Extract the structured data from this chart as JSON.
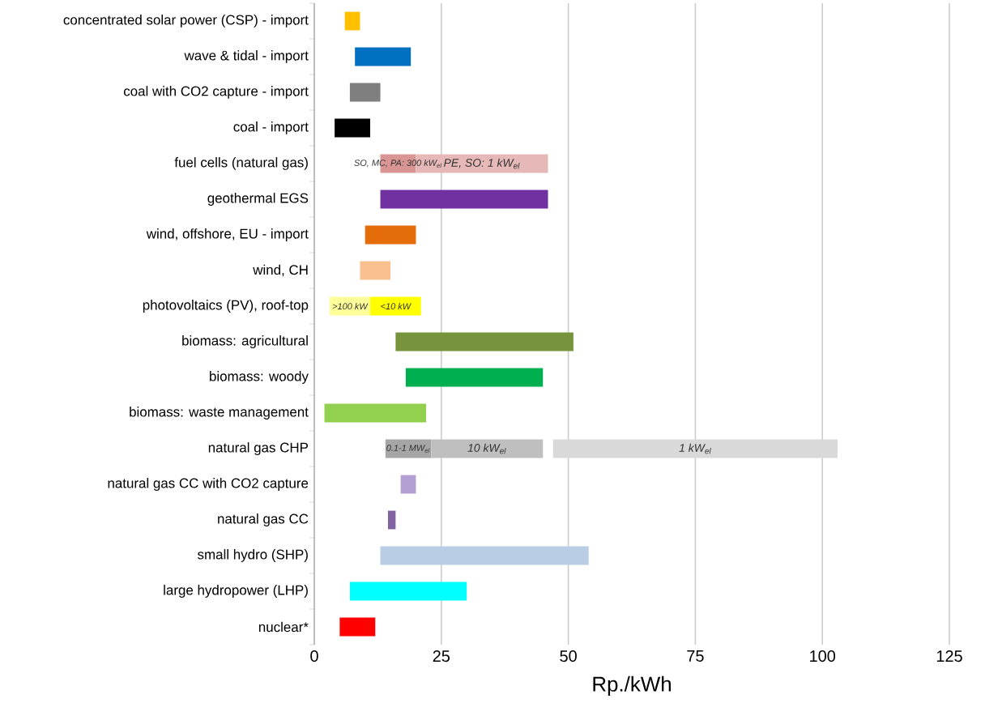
{
  "chart_data": {
    "type": "bar",
    "orientation": "horizontal",
    "xlabel": "Rp./kWh",
    "categories": [
      "concentrated solar power (CSP) - import",
      "wave & tidal - import",
      "coal with CO2 capture - import",
      "coal - import",
      "fuel cells (natural gas)",
      "geothermal EGS",
      "wind, offshore, EU - import",
      "wind, CH",
      "photovoltaics (PV), roof-top",
      "biomass: agricultural",
      "biomass: woody",
      "biomass: waste management",
      "natural gas CHP",
      "natural gas CC with CO2 capture",
      "natural gas CC",
      "small hydro (SHP)",
      "large hydropower (LHP)",
      "nuclear*"
    ],
    "series": [
      {
        "base": [
          6,
          8,
          7,
          4,
          13,
          13,
          10,
          9,
          3,
          16,
          18,
          2,
          14,
          17,
          14.5,
          13,
          7,
          5
        ],
        "values": [
          3,
          11,
          6,
          7,
          7,
          33,
          10,
          6,
          8,
          35,
          27,
          20,
          9,
          3,
          1.5,
          41,
          23,
          7
        ],
        "colors": [
          "#ffc000",
          "#0070c0",
          "#7f7f7f",
          "#000000",
          "#d99594",
          "#7030a0",
          "#e46c0a",
          "#fac090",
          "#ffff99",
          "#77933c",
          "#00b050",
          "#92d050",
          "#a6a6a6",
          "#b4a0d2",
          "#8064a2",
          "#b9cde5",
          "#00ffff",
          "#ff0000"
        ]
      },
      {
        "base": [
          null,
          null,
          null,
          null,
          20,
          null,
          null,
          null,
          11,
          null,
          null,
          null,
          23,
          null,
          null,
          null,
          null,
          null
        ],
        "values": [
          null,
          null,
          null,
          null,
          26,
          null,
          null,
          null,
          10,
          null,
          null,
          null,
          22,
          null,
          null,
          null,
          null,
          null
        ],
        "colors": [
          null,
          null,
          null,
          null,
          "#e6b9b8",
          null,
          null,
          null,
          "#ffff00",
          null,
          null,
          null,
          "#bfbfbf",
          null,
          null,
          null,
          null,
          null
        ]
      },
      {
        "base": [
          null,
          null,
          null,
          null,
          null,
          null,
          null,
          null,
          null,
          null,
          null,
          null,
          47,
          null,
          null,
          null,
          null,
          null
        ],
        "values": [
          null,
          null,
          null,
          null,
          null,
          null,
          null,
          null,
          null,
          null,
          null,
          null,
          56,
          null,
          null,
          null,
          null,
          null
        ],
        "colors": [
          null,
          null,
          null,
          null,
          null,
          null,
          null,
          null,
          null,
          null,
          null,
          null,
          "#d9d9d9",
          null,
          null,
          null,
          null,
          null
        ]
      }
    ],
    "annotations": [
      {
        "text": "SO, MC, PA: 300 kW$_{el}$",
        "x": 16.5,
        "y": "fuel cells (natural gas)"
      },
      {
        "text": "PE, SO: 1 kW$_{el}$",
        "x": 33,
        "y": "fuel cells (natural gas)"
      },
      {
        "text": ">100 kW",
        "x": 7,
        "y": "photovoltaics (PV), roof-top"
      },
      {
        "text": "<10 kW",
        "x": 16,
        "y": "photovoltaics (PV), roof-top"
      },
      {
        "text": "0.1-1 MW$_{el}$",
        "x": 18.5,
        "y": "natural gas CHP"
      },
      {
        "text": "10 kW$_{el}$",
        "x": 34,
        "y": "natural gas CHP"
      },
      {
        "text": "1 kW$_{el}$",
        "x": 75,
        "y": "natural gas CHP"
      }
    ],
    "xlim": [
      0,
      125
    ],
    "xticks": [
      0,
      25,
      50,
      75,
      100,
      125
    ],
    "grid": "x"
  }
}
